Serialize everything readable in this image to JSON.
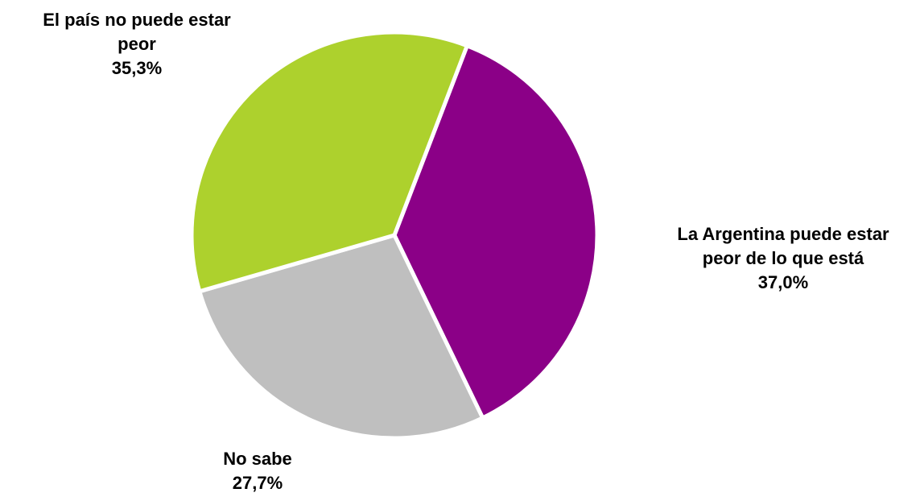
{
  "chart_data": {
    "type": "pie",
    "slices": [
      {
        "label_lines": [
          "La Argentina puede estar",
          "peor de lo que está"
        ],
        "value": 37.0,
        "value_label": "37,0%",
        "color": "#8B0087"
      },
      {
        "label_lines": [
          "No sabe"
        ],
        "value": 27.7,
        "value_label": "27,7%",
        "color": "#BFBFBF"
      },
      {
        "label_lines": [
          "El país no puede estar",
          "peor"
        ],
        "value": 35.3,
        "value_label": "35,3%",
        "color": "#ADD12D"
      }
    ],
    "start_angle_deg": 21,
    "direction": "clockwise",
    "slice_separator_color": "#FFFFFF",
    "legend": "none"
  }
}
